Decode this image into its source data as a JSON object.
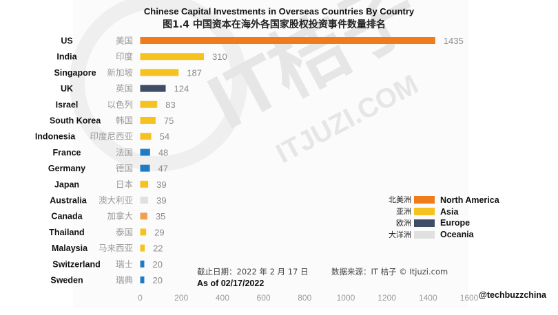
{
  "colors": {
    "North America": "#f07b1a",
    "Asia": "#f5c220",
    "Europe": "#3e4c66",
    "Oceania": "#e0e0e0",
    "europe_small": "#1f7bc4",
    "canada": "#f0a050"
  },
  "watermark": {
    "text1": "IT桔子",
    "text2": "ITJUZI.COM"
  },
  "chart_data": {
    "type": "bar",
    "orientation": "horizontal",
    "title": "Chinese Capital Investments in Overseas Countries  By Country",
    "subtitle": "图1.4  中国资本在海外各国家股权投资事件数量排名",
    "xlim": [
      0,
      1600
    ],
    "x_ticks": [
      "0",
      "200",
      "400",
      "600",
      "800",
      "1000",
      "1200",
      "1400",
      "1600"
    ],
    "grid": false,
    "legend_position": "bottom-right",
    "categories": [
      "US",
      "India",
      "Singapore",
      "UK",
      "Israel",
      "South Korea",
      "Indonesia",
      "France",
      "Germany",
      "Japan",
      "Australia",
      "Canada",
      "Thailand",
      "Malaysia",
      "Switzerland",
      "Sweden"
    ],
    "categories_zh": [
      "美国",
      "印度",
      "新加坡",
      "英国",
      "以色列",
      "韩国",
      "印度尼西亚",
      "法国",
      "德国",
      "日本",
      "澳大利亚",
      "加拿大",
      "泰国",
      "马来西亚",
      "瑞士",
      "瑞典"
    ],
    "values": [
      1435,
      310,
      187,
      124,
      83,
      75,
      54,
      48,
      47,
      39,
      39,
      35,
      29,
      22,
      20,
      20
    ],
    "regions": [
      "North America",
      "Asia",
      "Asia",
      "Europe",
      "Asia",
      "Asia",
      "Asia",
      "Europe",
      "Europe",
      "Asia",
      "Oceania",
      "North America",
      "Asia",
      "Asia",
      "Europe",
      "Europe"
    ],
    "legend": [
      {
        "zh": "北美洲",
        "en": "North America"
      },
      {
        "zh": "亚洲",
        "en": "Asia"
      },
      {
        "zh": "欧洲",
        "en": "Europe"
      },
      {
        "zh": "大洋洲",
        "en": "Oceania"
      }
    ],
    "note_zh": "截止日期：2022 年 2 月 17 日",
    "source_zh": "数据来源：IT 桔子 © Itjuzi.com",
    "note_en": "As of 02/17/2022",
    "credit": "@techbuzzchina"
  }
}
